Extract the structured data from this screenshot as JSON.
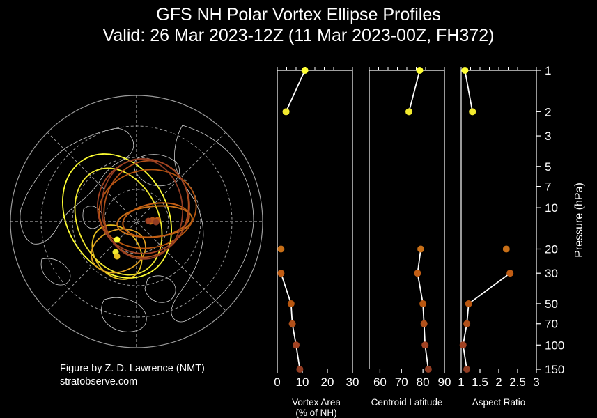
{
  "title_line1": "GFS NH Polar Vortex Ellipse Profiles",
  "title_line2": "Valid: 26 Mar 2023-12Z  (11 Mar 2023-00Z, FH372)",
  "credit_line1": "Figure by Z. D. Lawrence (NMT)",
  "credit_line2": "stratobserve.com",
  "colors": {
    "background": "#000000",
    "white": "#ffffff",
    "level_colors": [
      "#ffff33",
      "#f2ea2e",
      "#c86f17",
      "#c15d14",
      "#b8560f",
      "#b0501a",
      "#a14222",
      "#913c22"
    ]
  },
  "chart_data": [
    {
      "type": "map",
      "name": "polar-stereographic-map",
      "description_words": "north-polar stereographic map with vortex ellipses",
      "ellipse_colors_by_level": [
        "#ffff33",
        "#f2ea2e",
        "#c86f17",
        "#c15d14",
        "#b8560f",
        "#b0501a",
        "#a14222",
        "#913c22"
      ]
    },
    {
      "type": "scatter",
      "name": "vortex-area-panel",
      "xlabel": "Vortex Area\n(% of NH)",
      "xlabel_line1": "Vortex Area",
      "xlabel_line2": "(% of NH)",
      "xlim": [
        0,
        30
      ],
      "xticks": [
        0,
        10,
        20,
        30
      ],
      "xtick_labels": [
        "0",
        "10",
        "20",
        "30"
      ],
      "pressure": [
        1,
        2,
        20,
        30,
        50,
        70,
        100,
        150
      ],
      "values": [
        11,
        3.5,
        1.5,
        1.5,
        5.5,
        6,
        7.5,
        9
      ],
      "line_segments": [
        [
          0,
          1
        ],
        [
          3,
          4
        ],
        [
          4,
          5
        ],
        [
          5,
          6
        ],
        [
          6,
          7
        ]
      ]
    },
    {
      "type": "scatter",
      "name": "centroid-latitude-panel",
      "xlabel": "Centroid Latitude",
      "xlim": [
        55,
        90
      ],
      "xticks": [
        60,
        70,
        80,
        90
      ],
      "xtick_labels": [
        "60",
        "70",
        "80",
        "90"
      ],
      "pressure": [
        1,
        2,
        20,
        30,
        50,
        70,
        100,
        150
      ],
      "values": [
        78.5,
        73.5,
        79,
        77.5,
        80,
        80.5,
        81,
        82.5
      ],
      "line_segments": [
        [
          0,
          1
        ],
        [
          2,
          3
        ],
        [
          3,
          4
        ],
        [
          4,
          5
        ],
        [
          5,
          6
        ],
        [
          6,
          7
        ]
      ]
    },
    {
      "type": "scatter",
      "name": "aspect-ratio-panel",
      "xlabel": "Aspect Ratio",
      "xlim": [
        1,
        3
      ],
      "xticks": [
        1,
        1.5,
        2,
        2.5,
        3
      ],
      "xtick_labels": [
        "1",
        "1.5",
        "2",
        "2.5",
        "3"
      ],
      "pressure": [
        1,
        2,
        20,
        30,
        50,
        70,
        100,
        150
      ],
      "values": [
        1.1,
        1.3,
        2.2,
        2.3,
        1.2,
        1.15,
        1.05,
        1.15
      ],
      "line_segments": [
        [
          0,
          1
        ],
        [
          3,
          4
        ],
        [
          4,
          5
        ],
        [
          5,
          6
        ],
        [
          6,
          7
        ]
      ]
    }
  ],
  "pressure_axis": {
    "label": "Pressure (hPa)",
    "scale": "log",
    "ylim": [
      1,
      150
    ],
    "ticks": [
      1,
      2,
      3,
      5,
      7,
      10,
      20,
      30,
      50,
      70,
      100,
      150
    ],
    "tick_labels": [
      "1",
      "2",
      "3",
      "5",
      "7",
      "10",
      "20",
      "30",
      "50",
      "70",
      "100",
      "150"
    ]
  }
}
